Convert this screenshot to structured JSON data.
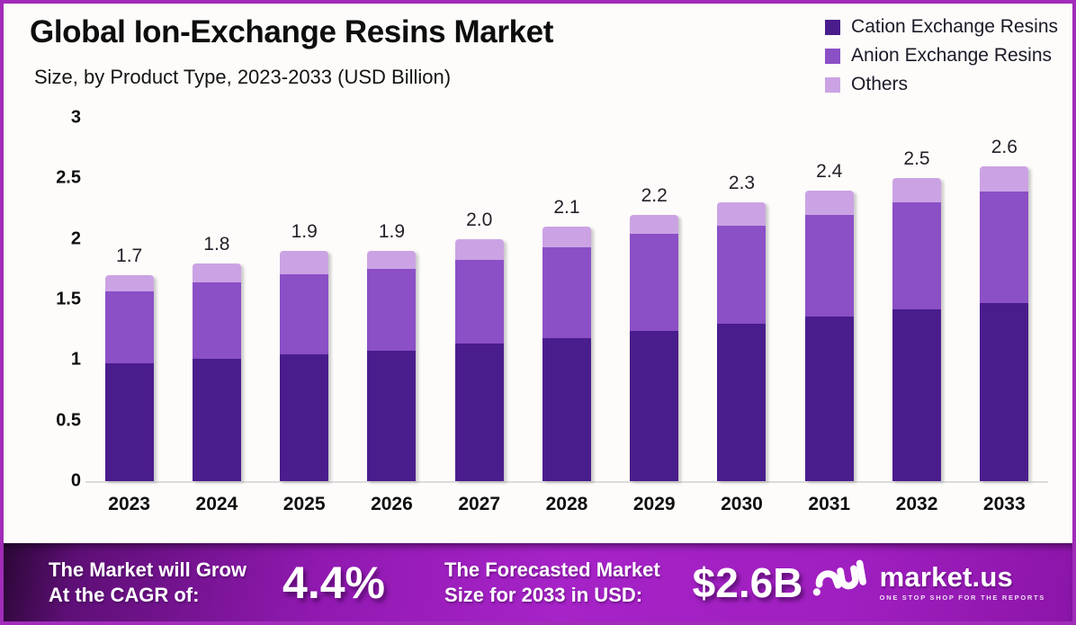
{
  "chart_data": {
    "type": "bar",
    "stacked": true,
    "title": "Global Ion-Exchange Resins Market",
    "subtitle": "Size, by Product Type, 2023-2033 (USD Billion)",
    "categories": [
      "2023",
      "2024",
      "2025",
      "2026",
      "2027",
      "2028",
      "2029",
      "2030",
      "2031",
      "2032",
      "2033"
    ],
    "series": [
      {
        "name": "Cation Exchange Resins",
        "color": "#4A1D8C",
        "values": [
          0.97,
          1.01,
          1.05,
          1.08,
          1.14,
          1.18,
          1.24,
          1.3,
          1.36,
          1.42,
          1.47
        ]
      },
      {
        "name": "Anion Exchange Resins",
        "color": "#8B4FC6",
        "values": [
          0.6,
          0.63,
          0.66,
          0.67,
          0.69,
          0.75,
          0.8,
          0.81,
          0.84,
          0.88,
          0.92
        ]
      },
      {
        "name": "Others",
        "color": "#CBA3E4",
        "values": [
          0.13,
          0.16,
          0.19,
          0.15,
          0.17,
          0.17,
          0.16,
          0.19,
          0.2,
          0.2,
          0.21
        ]
      }
    ],
    "totals": [
      "1.7",
      "1.8",
      "1.9",
      "1.9",
      "2.0",
      "2.1",
      "2.2",
      "2.3",
      "2.4",
      "2.5",
      "2.6"
    ],
    "xlabel": "",
    "ylabel": "",
    "ylim": [
      0,
      3
    ],
    "yticks": [
      0,
      0.5,
      1,
      1.5,
      2,
      2.5,
      3
    ],
    "grid": false,
    "legend_position": "top-right"
  },
  "banner": {
    "cagr_label_line1": "The Market will Grow",
    "cagr_label_line2": "At the CAGR of:",
    "cagr_value": "4.4%",
    "forecast_label_line1": "The Forecasted Market",
    "forecast_label_line2": "Size for 2033 in USD:",
    "forecast_value": "$2.6B",
    "logo_text": "market.us",
    "logo_tagline": "ONE STOP SHOP FOR THE REPORTS"
  },
  "colors": {
    "frame_border": "#A12CB9",
    "background": "#FDFCFA",
    "axis_line": "#DCDCDC",
    "banner_purple": "#A623C7",
    "text_dark": "#0d0d0d",
    "banner_text": "#FFFFFF"
  }
}
